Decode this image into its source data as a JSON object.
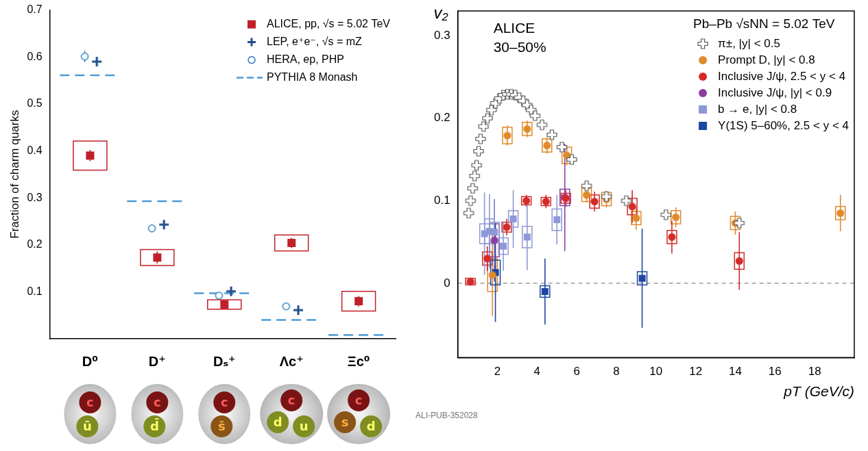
{
  "chart_data": [
    {
      "type": "scatter",
      "y_label": "Fraction of charm quarks",
      "categories": [
        "D⁰",
        "D⁺",
        "Dₛ⁺",
        "Λc⁺",
        "Ξc⁰"
      ],
      "ylim": [
        0,
        0.7
      ],
      "yticks": [
        0.1,
        0.2,
        0.3,
        0.4,
        0.5,
        0.6,
        0.7
      ],
      "grid": false,
      "legend": "top-right",
      "series": [
        {
          "name": "ALICE, pp, √s = 5.02 TeV",
          "color": "#c0202a",
          "marker": "square",
          "values": [
            0.39,
            0.173,
            0.073,
            0.204,
            0.08
          ],
          "errors": [
            0.012,
            0.013,
            0.008,
            0.011,
            0.011
          ],
          "syst": [
            0.031,
            0.017,
            0.01,
            0.017,
            0.021
          ]
        },
        {
          "name": "LEP, e⁺e⁻, √s = mZ",
          "color": "#1f4e8c",
          "marker": "plus",
          "values": [
            0.59,
            0.243,
            0.101,
            0.061,
            null
          ],
          "errors": [
            0.01,
            0.008,
            0.006,
            0.005,
            null
          ]
        },
        {
          "name": "HERA, ep, PHP",
          "color": "#3a87c8",
          "marker": "open_circle",
          "values": [
            0.601,
            0.235,
            0.092,
            0.069,
            null
          ],
          "errors": [
            0.012,
            0.008,
            0.006,
            0.007,
            null
          ]
        },
        {
          "name": "PYTHIA 8 Monash",
          "color": "#4a9bd8",
          "line_style": "dashed",
          "values": [
            0.561,
            0.293,
            0.097,
            0.04,
            0.008
          ]
        }
      ],
      "quarks": [
        [
          "c",
          "ū"
        ],
        [
          "c",
          "d̄"
        ],
        [
          "c",
          "s̄"
        ],
        [
          "c",
          "d",
          "u"
        ],
        [
          "c",
          "s",
          "d"
        ]
      ]
    },
    {
      "type": "scatter",
      "x_label": "pT (GeV/c)",
      "y_label": "v₂",
      "annotations": [
        "ALICE",
        "30–50%"
      ],
      "legend_title": "Pb–Pb √sNN = 5.02 TeV",
      "xlim": [
        0,
        20
      ],
      "xticks": [
        2,
        4,
        6,
        8,
        10,
        12,
        14,
        16,
        18
      ],
      "ylim": [
        -0.09,
        0.33
      ],
      "yticks": [
        0,
        0.1,
        0.2,
        0.3
      ],
      "reference_line": 0,
      "grid": false,
      "legend": "top-right",
      "footnote": "ALI-PUB-352028",
      "series": [
        {
          "name": "π±, |y| < 0.5",
          "color": "#555555",
          "marker": "open_cross",
          "x": [
            0.55,
            0.65,
            0.75,
            0.85,
            0.95,
            1.05,
            1.15,
            1.3,
            1.5,
            1.7,
            1.9,
            2.1,
            2.3,
            2.5,
            2.7,
            2.9,
            3.1,
            3.3,
            3.5,
            3.7,
            3.9,
            4.25,
            4.75,
            5.25,
            5.75,
            6.5,
            7.5,
            8.5,
            10.5,
            14.2
          ],
          "values": [
            0.085,
            0.1,
            0.115,
            0.13,
            0.143,
            0.16,
            0.175,
            0.19,
            0.2,
            0.21,
            0.218,
            0.224,
            0.228,
            0.229,
            0.229,
            0.228,
            0.225,
            0.221,
            0.216,
            0.21,
            0.203,
            0.192,
            0.18,
            0.165,
            0.15,
            0.118,
            0.105,
            0.1,
            0.083,
            0.073
          ]
        },
        {
          "name": "Prompt D, |y| < 0.8",
          "color": "#e08a2c",
          "marker": "circle",
          "x": [
            1.75,
            2.5,
            3.5,
            4.5,
            5.5,
            6.5,
            7.5,
            9,
            11,
            14,
            19.3
          ],
          "values": [
            0.01,
            0.179,
            0.187,
            0.167,
            0.155,
            0.107,
            0.102,
            0.079,
            0.08,
            0.073,
            0.085
          ],
          "errors": [
            0.05,
            0.012,
            0.01,
            0.01,
            0.012,
            0.009,
            0.01,
            0.014,
            0.012,
            0.014,
            0.022
          ],
          "syst": [
            0.02,
            0.01,
            0.008,
            0.008,
            0.01,
            0.008,
            0.008,
            0.008,
            0.008,
            0.008,
            0.008
          ]
        },
        {
          "name": "Inclusive J/ψ, 2.5 < y < 4",
          "color": "#d42a2a",
          "marker": "circle",
          "x": [
            0.64,
            1.49,
            2.47,
            3.46,
            4.45,
            5.45,
            6.9,
            8.8,
            10.8,
            14.2
          ],
          "values": [
            0.002,
            0.03,
            0.068,
            0.1,
            0.099,
            0.103,
            0.099,
            0.093,
            0.056,
            0.027
          ],
          "errors": [
            0.005,
            0.015,
            0.01,
            0.007,
            0.008,
            0.01,
            0.012,
            0.02,
            0.02,
            0.035
          ],
          "syst": [
            0.004,
            0.008,
            0.006,
            0.005,
            0.005,
            0.006,
            0.008,
            0.01,
            0.008,
            0.01
          ]
        },
        {
          "name": "Inclusive J/ψ, |y| < 0.9",
          "color": "#8b3fa0",
          "marker": "circle",
          "x": [
            1.85,
            5.4
          ],
          "values": [
            0.052,
            0.104
          ],
          "errors": [
            0.05,
            0.065
          ],
          "syst": [
            0.02,
            0.01
          ]
        },
        {
          "name": "b → e, |y| < 0.8",
          "color": "#8d98d6",
          "marker": "square",
          "x": [
            1.35,
            1.6,
            1.85,
            2.3,
            2.8,
            3.5,
            5.0
          ],
          "values": [
            0.06,
            0.063,
            0.062,
            0.045,
            0.078,
            0.056,
            0.077
          ],
          "errors": [
            0.05,
            0.045,
            0.04,
            0.03,
            0.035,
            0.04,
            0.03
          ],
          "syst": [
            0.012,
            0.015,
            0.012,
            0.01,
            0.01,
            0.013,
            0.013
          ]
        },
        {
          "name": "Υ(1S) 5–60%, 2.5 < y < 4",
          "color": "#1c46a0",
          "marker": "square",
          "x": [
            1.9,
            4.4,
            9.3
          ],
          "values": [
            0.013,
            -0.01,
            0.006
          ],
          "errors": [
            0.06,
            0.04,
            0.06
          ],
          "syst": [
            0.015,
            0.007,
            0.008
          ]
        }
      ]
    }
  ]
}
